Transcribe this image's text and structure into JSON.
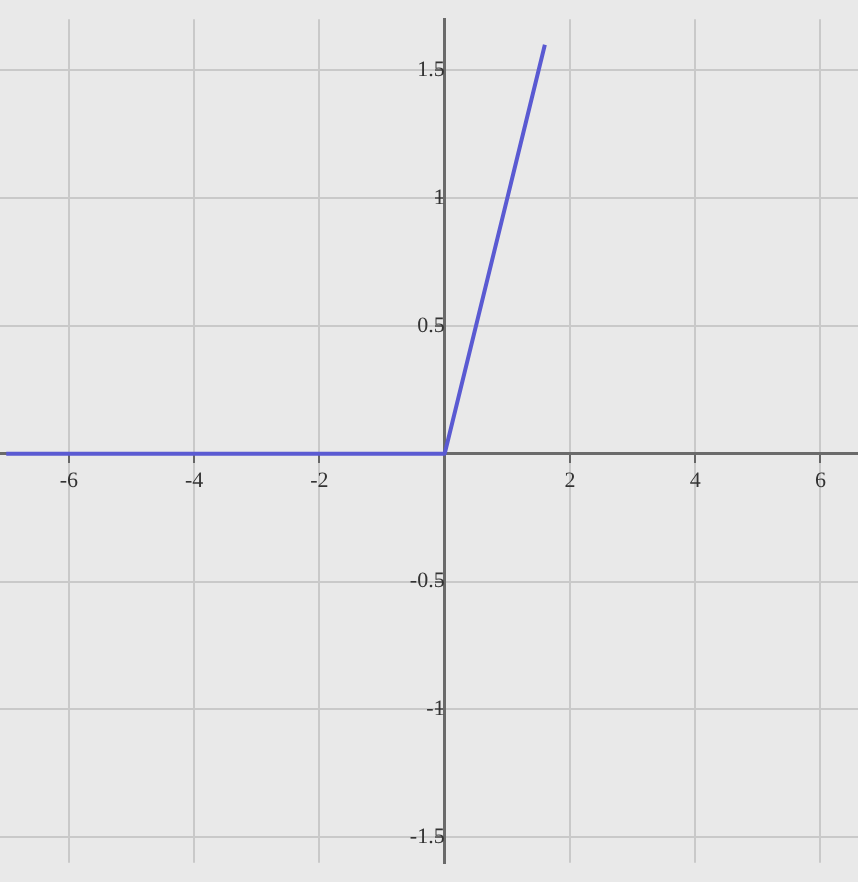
{
  "chart_data": {
    "type": "line",
    "series": [
      {
        "color": "#5a5ad2",
        "x": [
          -7,
          0,
          1.6
        ],
        "values": [
          0,
          0,
          1.6
        ]
      }
    ],
    "xlim": [
      -7.1,
      6.6
    ],
    "ylim": [
      -1.6,
      1.7
    ],
    "xticks": [
      -6,
      -4,
      -2,
      2,
      4,
      6
    ],
    "yticks": [
      -1.5,
      -1,
      -0.5,
      0.5,
      1,
      1.5
    ],
    "grid": true,
    "legend": false,
    "marker": "none",
    "line_style": "solid"
  }
}
